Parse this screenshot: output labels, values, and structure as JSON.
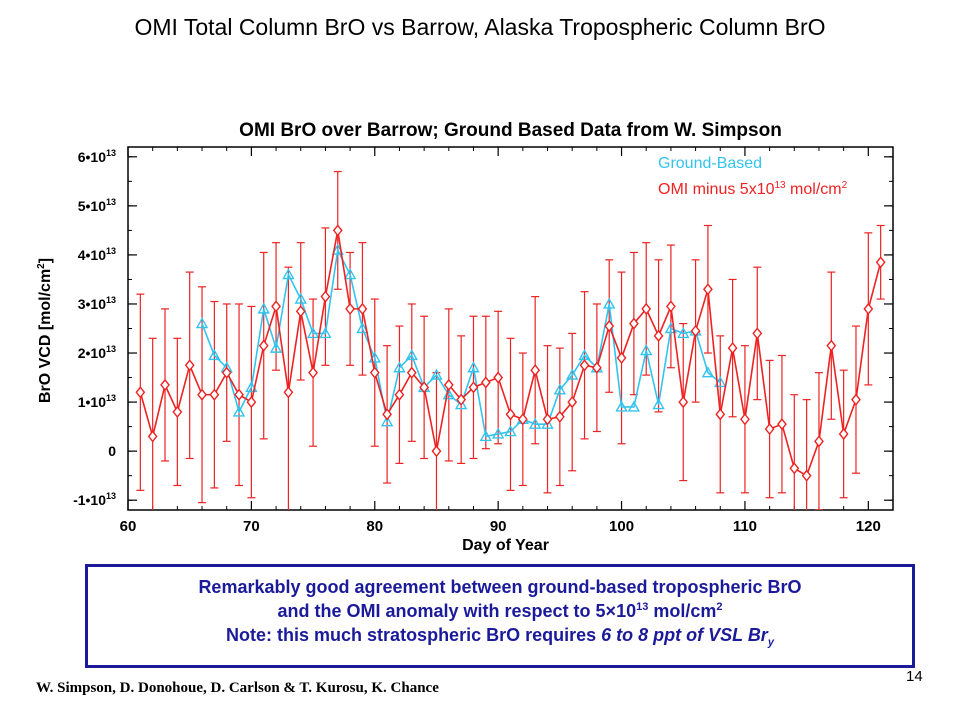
{
  "slide": {
    "title": "OMI Total Column BrO vs Barrow, Alaska Tropospheric Column BrO",
    "note_line1": "Remarkably good agreement between ground-based tropospheric BrO",
    "note_line2_pre": "and the OMI anomaly with respect to 5×10",
    "note_line2_exp": "13",
    "note_line2_mid": " mol/cm",
    "note_line2_exp2": "2",
    "note_line3_pre": "Note: this much stratospheric BrO requires ",
    "note_line3_em": "6 to 8 ppt of VSL Br",
    "note_line3_sub": "y",
    "authors": "W. Simpson, D. Donohoue, D. Carlson & T. Kurosu, K. Chance",
    "page_number": "14"
  },
  "chart_data": {
    "type": "line",
    "title": "OMI BrO over Barrow; Ground Based Data from W. Simpson",
    "xlabel": "Day of Year",
    "ylabel_main": "BrO VCD [mol/cm",
    "ylabel_sup": "2",
    "ylabel_end": "]",
    "xlim": [
      60,
      122
    ],
    "ylim": [
      -12000000000000.0,
      62000000000000.0
    ],
    "x_ticks": [
      60,
      70,
      80,
      90,
      100,
      110,
      120
    ],
    "y_ticks": [
      {
        "value": 60000000000000.0,
        "mant": "6•10",
        "exp": "13"
      },
      {
        "value": 50000000000000.0,
        "mant": "5•10",
        "exp": "13"
      },
      {
        "value": 40000000000000.0,
        "mant": "4•10",
        "exp": "13"
      },
      {
        "value": 30000000000000.0,
        "mant": "3•10",
        "exp": "13"
      },
      {
        "value": 20000000000000.0,
        "mant": "2•10",
        "exp": "13"
      },
      {
        "value": 10000000000000.0,
        "mant": "1•10",
        "exp": "13"
      },
      {
        "value": 0,
        "mant": "0",
        "exp": ""
      },
      {
        "value": -10000000000000.0,
        "mant": "-1•10",
        "exp": "13"
      }
    ],
    "legend_position": "top-right",
    "series": [
      {
        "name": "Ground-Based",
        "legend_text": "Ground-Based",
        "color": "#33c4ee",
        "marker": "triangle",
        "x": [
          66,
          67,
          68,
          69,
          70,
          71,
          72,
          73,
          74,
          75,
          76,
          77,
          78,
          79,
          80,
          81,
          82,
          83,
          84,
          85,
          86,
          87,
          88,
          89,
          90,
          91,
          92,
          93,
          94,
          95,
          96,
          97,
          98,
          99,
          100,
          101,
          102,
          103,
          104,
          105,
          106,
          107,
          108
        ],
        "y": [
          26000000000000.0,
          19500000000000.0,
          17000000000000.0,
          8000000000000.0,
          13000000000000.0,
          29000000000000.0,
          21000000000000.0,
          36000000000000.0,
          31000000000000.0,
          24000000000000.0,
          24000000000000.0,
          41000000000000.0,
          36000000000000.0,
          25000000000000.0,
          19000000000000.0,
          6000000000000.0,
          17000000000000.0,
          19500000000000.0,
          13000000000000.0,
          15500000000000.0,
          11500000000000.0,
          9500000000000.0,
          17000000000000.0,
          3000000000000.0,
          3500000000000.0,
          4000000000000.0,
          6500000000000.0,
          5500000000000.0,
          5500000000000.0,
          12500000000000.0,
          15500000000000.0,
          19500000000000.0,
          17000000000000.0,
          30000000000000.0,
          9000000000000.0,
          9000000000000.0,
          20500000000000.0,
          9500000000000.0,
          25000000000000.0,
          24000000000000.0,
          24500000000000.0,
          16000000000000.0,
          14000000000000.0
        ]
      },
      {
        "name": "OMI minus 5x10^13 mol/cm^2",
        "legend_pre": "OMI minus 5x10",
        "legend_exp": "13",
        "legend_post": " mol/cm",
        "legend_exp2": "2",
        "color": "#ee2222",
        "marker": "diamond",
        "x": [
          61,
          62,
          63,
          64,
          65,
          66,
          67,
          68,
          69,
          70,
          71,
          72,
          73,
          74,
          75,
          76,
          77,
          78,
          79,
          80,
          81,
          82,
          83,
          84,
          85,
          86,
          87,
          88,
          89,
          90,
          91,
          92,
          93,
          94,
          95,
          96,
          97,
          98,
          99,
          100,
          101,
          102,
          103,
          104,
          105,
          106,
          107,
          108,
          109,
          110,
          111,
          112,
          113,
          114,
          115,
          116,
          117,
          118,
          119,
          120,
          121
        ],
        "y": [
          12000000000000.0,
          3000000000000.0,
          13500000000000.0,
          8000000000000.0,
          17500000000000.0,
          11500000000000.0,
          11500000000000.0,
          16000000000000.0,
          11500000000000.0,
          10000000000000.0,
          21500000000000.0,
          29500000000000.0,
          12000000000000.0,
          28500000000000.0,
          16000000000000.0,
          31500000000000.0,
          45000000000000.0,
          29000000000000.0,
          29000000000000.0,
          16000000000000.0,
          7500000000000.0,
          11500000000000.0,
          16000000000000.0,
          13000000000000.0,
          0.0,
          13500000000000.0,
          10500000000000.0,
          13000000000000.0,
          14000000000000.0,
          15000000000000.0,
          7500000000000.0,
          6500000000000.0,
          16500000000000.0,
          6500000000000.0,
          7000000000000.0,
          10000000000000.0,
          17500000000000.0,
          17000000000000.0,
          25500000000000.0,
          19000000000000.0,
          26000000000000.0,
          29000000000000.0,
          23500000000000.0,
          29500000000000.0,
          10000000000000.0,
          24500000000000.0,
          33000000000000.0,
          7500000000000.0,
          21000000000000.0,
          6500000000000.0,
          24000000000000.0,
          4500000000000.0,
          5500000000000.0,
          -3500000000000.0,
          -5000000000000.0,
          2000000000000.0,
          21500000000000.0,
          3500000000000.0,
          10500000000000.0,
          29000000000000.0,
          38500000000000.0
        ],
        "error": [
          20000000000000.0,
          20000000000000.0,
          15500000000000.0,
          15000000000000.0,
          19000000000000.0,
          22000000000000.0,
          19000000000000.0,
          14000000000000.0,
          18500000000000.0,
          19500000000000.0,
          19000000000000.0,
          13000000000000.0,
          25500000000000.0,
          14000000000000.0,
          15000000000000.0,
          14000000000000.0,
          12000000000000.0,
          11500000000000.0,
          13500000000000.0,
          15000000000000.0,
          14000000000000.0,
          14000000000000.0,
          14000000000000.0,
          14500000000000.0,
          16000000000000.0,
          15500000000000.0,
          13000000000000.0,
          14500000000000.0,
          13500000000000.0,
          13500000000000.0,
          15500000000000.0,
          13500000000000.0,
          15000000000000.0,
          15000000000000.0,
          14000000000000.0,
          14000000000000.0,
          15000000000000.0,
          13000000000000.0,
          13500000000000.0,
          17500000000000.0,
          14500000000000.0,
          13500000000000.0,
          15500000000000.0,
          12500000000000.0,
          16000000000000.0,
          14500000000000.0,
          13000000000000.0,
          16000000000000.0,
          14000000000000.0,
          15000000000000.0,
          13500000000000.0,
          14000000000000.0,
          14000000000000.0,
          15000000000000.0,
          15500000000000.0,
          14000000000000.0,
          15000000000000.0,
          13000000000000.0,
          15000000000000.0,
          15500000000000.0,
          7500000000000.0
        ]
      }
    ]
  }
}
